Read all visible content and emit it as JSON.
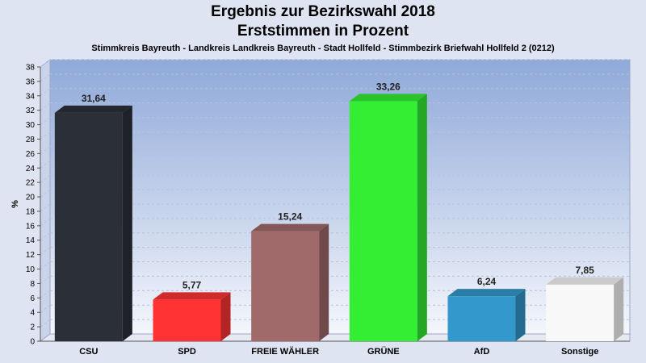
{
  "chart_data": {
    "type": "bar",
    "title": "Ergebnis zur Bezirkswahl 2018",
    "subtitle": "Erststimmen in Prozent",
    "description": "Stimmkreis Bayreuth - Landkreis Landkreis Bayreuth - Stadt Hollfeld - Stimmbezirk Briefwahl Hollfeld 2 (0212)",
    "ylabel": "%",
    "xlabel": "",
    "ylim": [
      0,
      38
    ],
    "yticks": [
      "0",
      "2",
      "4",
      "6",
      "8",
      "10",
      "12",
      "14",
      "16",
      "18",
      "20",
      "22",
      "24",
      "26",
      "28",
      "30",
      "32",
      "34",
      "36",
      "38"
    ],
    "grid": true,
    "categories": [
      "CSU",
      "SPD",
      "FREIE WÄHLER",
      "GRÜNE",
      "AfD",
      "Sonstige"
    ],
    "values": [
      31.64,
      5.77,
      15.24,
      33.26,
      6.24,
      7.85
    ],
    "value_labels": [
      "31,64",
      "5,77",
      "15,24",
      "33,26",
      "6,24",
      "7,85"
    ],
    "colors": [
      "#2b2f38",
      "#ff3333",
      "#a06a6a",
      "#33ee33",
      "#3399cc",
      "#f8f8f8"
    ]
  }
}
